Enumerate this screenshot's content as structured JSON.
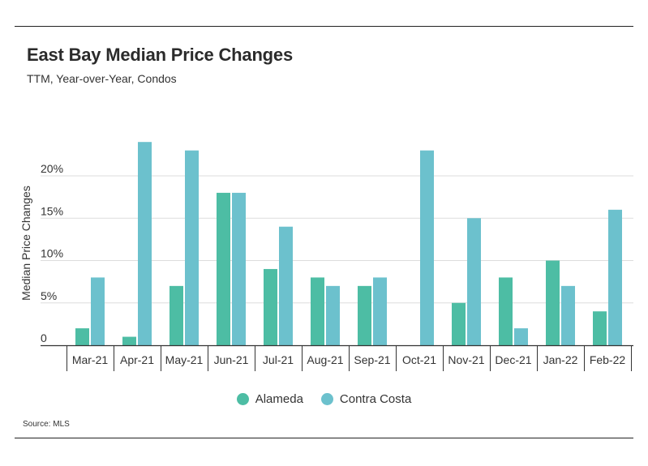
{
  "header": {
    "title": "East Bay Median Price Changes",
    "subtitle": "TTM, Year-over-Year, Condos"
  },
  "footer": {
    "source": "Source:  MLS"
  },
  "colors": {
    "alameda": "#4dbda4",
    "contra_costa": "#6cc1cd",
    "grid": "#dddddd",
    "axis": "#333333"
  },
  "chart_data": {
    "type": "bar",
    "title": "East Bay Median Price Changes",
    "subtitle": "TTM, Year-over-Year, Condos",
    "xlabel": "",
    "ylabel": "Median Price Changes",
    "ylim": [
      0,
      24
    ],
    "yticks": [
      0,
      5,
      10,
      15,
      20
    ],
    "ytick_labels": [
      "0",
      "5%",
      "10%",
      "15%",
      "20%"
    ],
    "grid": true,
    "legend_position": "bottom",
    "categories": [
      "Mar-21",
      "Apr-21",
      "May-21",
      "Jun-21",
      "Jul-21",
      "Aug-21",
      "Sep-21",
      "Oct-21",
      "Nov-21",
      "Dec-21",
      "Jan-22",
      "Feb-22"
    ],
    "series": [
      {
        "name": "Alameda",
        "values": [
          2,
          1,
          7,
          18,
          9,
          8,
          7,
          0,
          5,
          8,
          10,
          4
        ]
      },
      {
        "name": "Contra Costa",
        "values": [
          8,
          24,
          23,
          18,
          14,
          7,
          8,
          23,
          15,
          2,
          7,
          16
        ]
      }
    ]
  }
}
